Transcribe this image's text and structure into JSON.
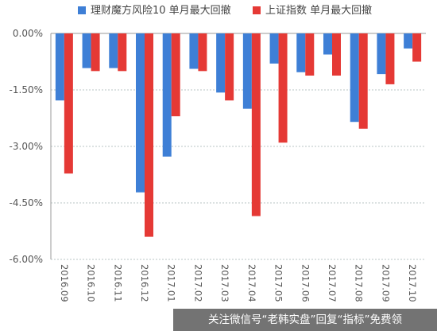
{
  "chart_data": {
    "type": "bar",
    "categories": [
      "2016.09",
      "2016.10",
      "2016.11",
      "2016.12",
      "2017.01",
      "2017.02",
      "2017.03",
      "2017.04",
      "2017.05",
      "2017.06",
      "2017.07",
      "2017.08",
      "2017.09",
      "2017.10"
    ],
    "series": [
      {
        "name": "理财魔方风险10 单月最大回撤",
        "color": "#3e7fd6",
        "values": [
          -1.78,
          -0.92,
          -0.92,
          -4.22,
          -3.27,
          -0.94,
          -1.57,
          -2.0,
          -0.8,
          -1.03,
          -0.56,
          -2.35,
          -1.08,
          -0.4
        ]
      },
      {
        "name": "上证指数 单月最大回撤",
        "color": "#e53935",
        "values": [
          -3.72,
          -1.0,
          -1.0,
          -5.4,
          -2.2,
          -1.0,
          -1.78,
          -4.85,
          -2.9,
          -1.12,
          -1.12,
          -2.53,
          -1.35,
          -0.75
        ]
      }
    ],
    "yticks": [
      "0.00%",
      "-1.50%",
      "-3.00%",
      "-4.50%",
      "-6.00%"
    ],
    "ytick_values": [
      0,
      -1.5,
      -3.0,
      -4.5,
      -6.0
    ],
    "ylim": [
      -6.0,
      0
    ],
    "grid": true,
    "legend": "top"
  },
  "watermark": {
    "text": "关注微信号“老韩实盘”回复“指标”免费领"
  }
}
